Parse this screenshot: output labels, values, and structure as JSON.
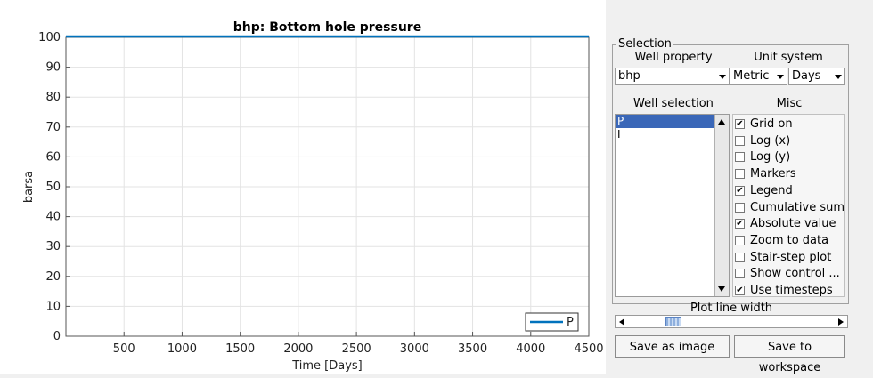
{
  "chart_data": {
    "type": "line",
    "title": "bhp: Bottom hole pressure",
    "xlabel": "Time [Days]",
    "ylabel": "barsa",
    "xlim": [
      0,
      4500
    ],
    "ylim": [
      0,
      100
    ],
    "x_ticks": [
      500,
      1000,
      1500,
      2000,
      2500,
      3000,
      3500,
      4000,
      4500
    ],
    "y_ticks": [
      0,
      10,
      20,
      30,
      40,
      50,
      60,
      70,
      80,
      90,
      100
    ],
    "grid": true,
    "legend_position": "bottom-right",
    "series": [
      {
        "name": "P",
        "color": "#0072bd",
        "x": [
          0,
          4500
        ],
        "y": [
          100,
          100
        ]
      }
    ]
  },
  "panel": {
    "group_title": "Selection",
    "well_property_label": "Well property",
    "well_property_value": "bhp",
    "unit_system_label": "Unit system",
    "unit_value": "Metric",
    "time_unit_value": "Days",
    "well_selection_label": "Well selection",
    "wells": [
      {
        "name": "P",
        "selected": true
      },
      {
        "name": "I",
        "selected": false
      }
    ],
    "misc_label": "Misc",
    "misc_options": [
      {
        "label": "Grid on",
        "checked": true
      },
      {
        "label": "Log (x)",
        "checked": false
      },
      {
        "label": "Log (y)",
        "checked": false
      },
      {
        "label": "Markers",
        "checked": false
      },
      {
        "label": "Legend",
        "checked": true
      },
      {
        "label": "Cumulative sum",
        "checked": false
      },
      {
        "label": "Absolute value",
        "checked": true
      },
      {
        "label": "Zoom to data",
        "checked": false
      },
      {
        "label": "Stair-step plot",
        "checked": false
      },
      {
        "label": "Show control ...",
        "checked": false
      },
      {
        "label": "Use timesteps",
        "checked": true
      }
    ],
    "line_width_label": "Plot line width",
    "save_image_label": "Save as image",
    "save_workspace_label": "Save to workspace"
  }
}
